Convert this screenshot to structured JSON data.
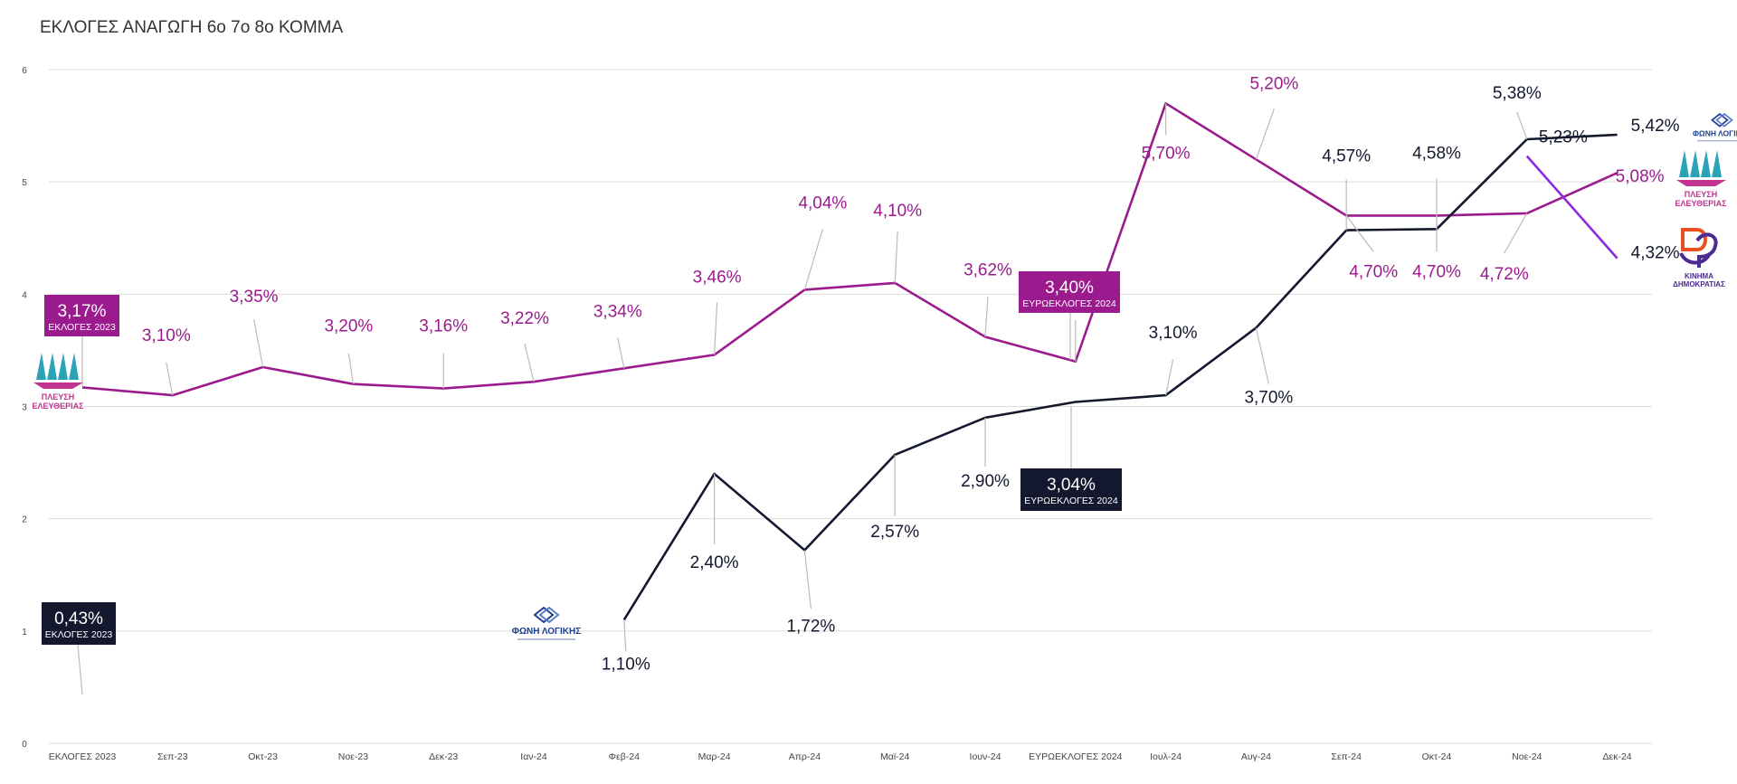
{
  "chart_data": {
    "type": "line",
    "title": "ΕΚΛΟΓΕΣ ΑΝΑΓΩΓΗ 6ο 7ο 8ο ΚΟΜΜΑ",
    "xlabel": "",
    "ylabel": "",
    "ylim": [
      0,
      6
    ],
    "yticks": [
      "0",
      "1",
      "2",
      "3",
      "4",
      "5",
      "6"
    ],
    "grid": true,
    "categories": [
      "ΕΚΛΟΓΕΣ 2023",
      "Σεπ-23",
      "Οκτ-23",
      "Νοε-23",
      "Δεκ-23",
      "Ιαν-24",
      "Φεβ-24",
      "Μαρ-24",
      "Απρ-24",
      "Μαϊ-24",
      "Ιουν-24",
      "ΕΥΡΩΕΚΛΟΓΕΣ 2024",
      "Ιουλ-24",
      "Αυγ-24",
      "Σεπ-24",
      "Οκτ-24",
      "Νοε-24",
      "Δεκ-24"
    ],
    "series": [
      {
        "name": "ΠΛΕΥΣΗ ΕΛΕΥΘΕΡΙΑΣ",
        "color": "#9b1b8e",
        "values": [
          3.17,
          3.1,
          3.35,
          3.2,
          3.16,
          3.22,
          3.34,
          3.46,
          4.04,
          4.1,
          3.62,
          3.4,
          5.7,
          5.2,
          4.7,
          4.7,
          4.72,
          5.08
        ],
        "labels": [
          "3,17%",
          "3,10%",
          "3,35%",
          "3,20%",
          "3,16%",
          "3,22%",
          "3,34%",
          "3,46%",
          "4,04%",
          "4,10%",
          "3,62%",
          "3,40%",
          "5,70%",
          "5,20%",
          "4,70%",
          "4,70%",
          "4,72%",
          "5,08%"
        ]
      },
      {
        "name": "ΦΩΝΗ ΛΟΓΙΚΗΣ",
        "color": "#13182e",
        "values": [
          0.43,
          null,
          null,
          null,
          null,
          null,
          1.1,
          2.4,
          1.72,
          2.57,
          2.9,
          3.04,
          3.1,
          3.7,
          4.57,
          4.58,
          5.38,
          5.42
        ],
        "labels": [
          "0,43%",
          null,
          null,
          null,
          null,
          null,
          "1,10%",
          "2,40%",
          "1,72%",
          "2,57%",
          "2,90%",
          "3,04%",
          "3,10%",
          "3,70%",
          "4,57%",
          "4,58%",
          "5,38%",
          "5,42%"
        ]
      },
      {
        "name": "ΚΙΝΗΜΑ ΔΗΜΟΚΡΑΤΙΑΣ",
        "color": "#8a2be2",
        "values": [
          null,
          null,
          null,
          null,
          null,
          null,
          null,
          null,
          null,
          null,
          null,
          null,
          null,
          null,
          null,
          null,
          5.23,
          4.32
        ],
        "labels": [
          null,
          null,
          null,
          null,
          null,
          null,
          null,
          null,
          null,
          null,
          null,
          null,
          null,
          null,
          null,
          null,
          "5,23%",
          "4,32%"
        ]
      }
    ],
    "callouts": [
      {
        "series": 0,
        "value": "3,17%",
        "caption": "ΕΚΛΟΓΕΣ 2023"
      },
      {
        "series": 0,
        "value": "3,40%",
        "caption": "ΕΥΡΩΕΚΛΟΓΕΣ 2024"
      },
      {
        "series": 1,
        "value": "0,43%",
        "caption": "ΕΚΛΟΓΕΣ 2023"
      },
      {
        "series": 1,
        "value": "3,04%",
        "caption": "ΕΥΡΩΕΚΛΟΓΕΣ 2024"
      }
    ]
  },
  "logos": {
    "plefsi": {
      "line1": "ΠΛΕΥΣΗ",
      "line2": "ΕΛΕΥΘΕΡΙΑΣ",
      "color_pink": "#c2338f",
      "color_teal": "#2aa3b8"
    },
    "foni": {
      "text": "ΦΩΝΗ ΛΟΓΙΚΗΣ",
      "color": "#1c3f8f"
    },
    "kinima": {
      "line1": "ΚΙΝΗΜΑ",
      "line2": "ΔΗΜΟΚΡΑΤΙΑΣ",
      "color_dark": "#4a2b8f",
      "color_orange": "#e8511f"
    }
  },
  "colors": {
    "grid": "#dcdcdc",
    "axis_text": "#444444",
    "leader": "#bbbbbb"
  }
}
